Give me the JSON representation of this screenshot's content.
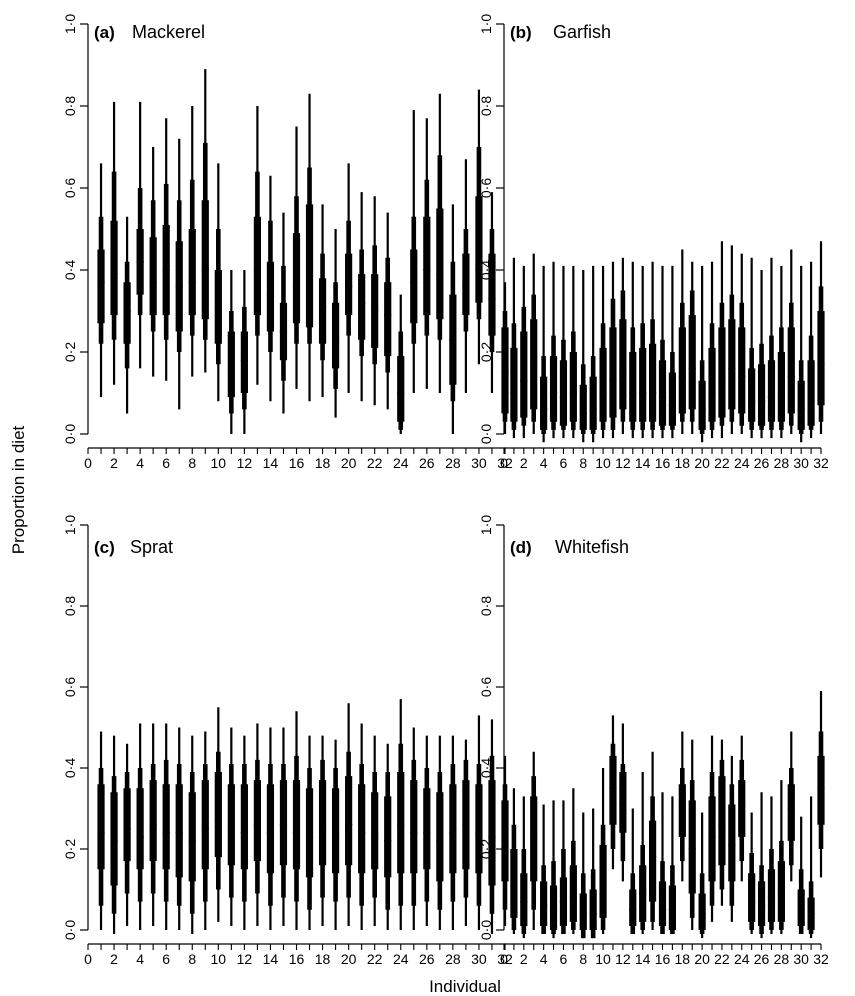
{
  "xlabel": "Individual",
  "ylabel": "Proportion in diet",
  "colors": {
    "boxes": "#000000",
    "axes": "#000000",
    "background": "#ffffff"
  },
  "chart_data": [
    {
      "type": "box",
      "label": "(a)",
      "title": "Mackerel",
      "ylim": [
        0,
        1
      ],
      "xlim": [
        0,
        32
      ],
      "yticks": [
        "0·0",
        "0·2",
        "0·4",
        "0·6",
        "0·8",
        "1·0"
      ],
      "xticks": [
        "0",
        "2",
        "4",
        "6",
        "8",
        "10",
        "12",
        "14",
        "16",
        "18",
        "20",
        "22",
        "24",
        "26",
        "28",
        "30",
        "32"
      ],
      "grid": false,
      "legend": "none",
      "individuals": [
        1,
        2,
        3,
        4,
        5,
        6,
        7,
        8,
        9,
        10,
        11,
        12,
        13,
        14,
        15,
        16,
        17,
        18,
        19,
        20,
        21,
        22,
        23,
        24,
        25,
        26,
        27,
        28,
        29,
        30,
        31,
        32
      ],
      "whisker_low": [
        0.09,
        0.12,
        0.05,
        0.16,
        0.14,
        0.13,
        0.06,
        0.14,
        0.15,
        0.08,
        0.0,
        0.0,
        0.12,
        0.08,
        0.05,
        0.11,
        0.08,
        0.09,
        0.04,
        0.1,
        0.08,
        0.07,
        0.06,
        0.0,
        0.1,
        0.11,
        0.1,
        0.0,
        0.1,
        0.17,
        0.1,
        0.0
      ],
      "q1": [
        0.22,
        0.23,
        0.16,
        0.29,
        0.25,
        0.23,
        0.2,
        0.24,
        0.23,
        0.17,
        0.05,
        0.06,
        0.24,
        0.2,
        0.13,
        0.22,
        0.22,
        0.18,
        0.11,
        0.24,
        0.19,
        0.17,
        0.15,
        0.01,
        0.22,
        0.24,
        0.23,
        0.08,
        0.25,
        0.28,
        0.2,
        0.03
      ],
      "q1_inner": [
        0.27,
        0.29,
        0.22,
        0.34,
        0.29,
        0.29,
        0.25,
        0.29,
        0.28,
        0.22,
        0.09,
        0.1,
        0.29,
        0.25,
        0.18,
        0.27,
        0.26,
        0.22,
        0.16,
        0.29,
        0.23,
        0.21,
        0.19,
        0.03,
        0.27,
        0.29,
        0.28,
        0.12,
        0.29,
        0.32,
        0.24,
        0.05
      ],
      "median": [
        0.37,
        0.39,
        0.3,
        0.42,
        0.37,
        0.4,
        0.36,
        0.37,
        0.4,
        0.31,
        0.15,
        0.18,
        0.4,
        0.34,
        0.25,
        0.36,
        0.4,
        0.31,
        0.23,
        0.36,
        0.32,
        0.3,
        0.29,
        0.1,
        0.37,
        0.4,
        0.39,
        0.23,
        0.36,
        0.4,
        0.33,
        0.15
      ],
      "q3_inner": [
        0.45,
        0.52,
        0.37,
        0.5,
        0.48,
        0.51,
        0.47,
        0.5,
        0.57,
        0.4,
        0.25,
        0.25,
        0.53,
        0.42,
        0.32,
        0.49,
        0.56,
        0.38,
        0.32,
        0.44,
        0.39,
        0.39,
        0.37,
        0.19,
        0.45,
        0.53,
        0.55,
        0.34,
        0.44,
        0.58,
        0.44,
        0.26
      ],
      "q3": [
        0.53,
        0.64,
        0.42,
        0.6,
        0.57,
        0.61,
        0.57,
        0.62,
        0.71,
        0.5,
        0.3,
        0.31,
        0.64,
        0.52,
        0.41,
        0.58,
        0.65,
        0.44,
        0.37,
        0.52,
        0.45,
        0.46,
        0.43,
        0.25,
        0.53,
        0.62,
        0.68,
        0.42,
        0.5,
        0.7,
        0.5,
        0.3
      ],
      "whisker_high": [
        0.66,
        0.81,
        0.53,
        0.81,
        0.7,
        0.77,
        0.72,
        0.8,
        0.89,
        0.66,
        0.4,
        0.4,
        0.8,
        0.63,
        0.54,
        0.75,
        0.83,
        0.56,
        0.5,
        0.66,
        0.59,
        0.58,
        0.54,
        0.34,
        0.79,
        0.77,
        0.83,
        0.56,
        0.67,
        0.84,
        0.59,
        0.37
      ]
    },
    {
      "type": "box",
      "label": "(b)",
      "title": "Garfish",
      "ylim": [
        0,
        1
      ],
      "xlim": [
        0,
        32
      ],
      "yticks": [
        "0·0",
        "0·2",
        "0·4",
        "0·6",
        "0·8",
        "1·0"
      ],
      "xticks": [
        "0",
        "2",
        "4",
        "6",
        "8",
        "10",
        "12",
        "14",
        "16",
        "18",
        "20",
        "22",
        "24",
        "26",
        "28",
        "30",
        "32"
      ],
      "grid": false,
      "legend": "none",
      "individuals": [
        1,
        2,
        3,
        4,
        5,
        6,
        7,
        8,
        9,
        10,
        11,
        12,
        13,
        14,
        15,
        16,
        17,
        18,
        19,
        20,
        21,
        22,
        23,
        24,
        25,
        26,
        27,
        28,
        29,
        30,
        31,
        32
      ],
      "whisker_low": [
        -0.01,
        -0.01,
        0.0,
        -0.02,
        -0.01,
        -0.01,
        -0.01,
        -0.02,
        -0.02,
        -0.01,
        -0.01,
        0.0,
        -0.01,
        -0.01,
        -0.01,
        -0.01,
        -0.01,
        0.0,
        0.0,
        -0.02,
        -0.01,
        -0.01,
        0.0,
        0.0,
        -0.01,
        -0.01,
        -0.01,
        -0.01,
        0.0,
        -0.02,
        -0.01,
        0.0
      ],
      "q1": [
        0.01,
        0.02,
        0.03,
        0.0,
        0.01,
        0.01,
        0.01,
        0.0,
        0.0,
        0.01,
        0.01,
        0.03,
        0.01,
        0.01,
        0.01,
        0.01,
        0.01,
        0.03,
        0.03,
        0.0,
        0.01,
        0.02,
        0.03,
        0.02,
        0.01,
        0.01,
        0.01,
        0.01,
        0.02,
        0.0,
        0.01,
        0.03
      ],
      "q1_inner": [
        0.03,
        0.04,
        0.06,
        0.01,
        0.03,
        0.02,
        0.03,
        0.01,
        0.01,
        0.03,
        0.04,
        0.06,
        0.03,
        0.03,
        0.03,
        0.02,
        0.02,
        0.05,
        0.06,
        0.01,
        0.03,
        0.04,
        0.06,
        0.05,
        0.03,
        0.02,
        0.03,
        0.03,
        0.05,
        0.01,
        0.02,
        0.07
      ],
      "median": [
        0.1,
        0.13,
        0.17,
        0.06,
        0.1,
        0.09,
        0.1,
        0.05,
        0.06,
        0.1,
        0.13,
        0.15,
        0.1,
        0.1,
        0.1,
        0.09,
        0.07,
        0.14,
        0.16,
        0.06,
        0.1,
        0.13,
        0.16,
        0.14,
        0.08,
        0.08,
        0.09,
        0.09,
        0.14,
        0.06,
        0.08,
        0.17
      ],
      "q3_inner": [
        0.21,
        0.25,
        0.28,
        0.14,
        0.19,
        0.18,
        0.2,
        0.12,
        0.14,
        0.21,
        0.26,
        0.28,
        0.2,
        0.21,
        0.22,
        0.18,
        0.15,
        0.26,
        0.29,
        0.13,
        0.21,
        0.26,
        0.28,
        0.26,
        0.16,
        0.17,
        0.18,
        0.2,
        0.26,
        0.13,
        0.18,
        0.3
      ],
      "q3": [
        0.27,
        0.31,
        0.34,
        0.19,
        0.24,
        0.23,
        0.25,
        0.17,
        0.19,
        0.27,
        0.33,
        0.35,
        0.26,
        0.27,
        0.28,
        0.23,
        0.2,
        0.32,
        0.35,
        0.18,
        0.27,
        0.32,
        0.34,
        0.32,
        0.21,
        0.22,
        0.24,
        0.26,
        0.32,
        0.18,
        0.24,
        0.36
      ],
      "whisker_high": [
        0.43,
        0.41,
        0.44,
        0.41,
        0.42,
        0.41,
        0.41,
        0.4,
        0.41,
        0.41,
        0.42,
        0.43,
        0.42,
        0.41,
        0.42,
        0.41,
        0.41,
        0.45,
        0.42,
        0.41,
        0.42,
        0.47,
        0.46,
        0.44,
        0.43,
        0.4,
        0.43,
        0.41,
        0.45,
        0.41,
        0.42,
        0.47
      ]
    },
    {
      "type": "box",
      "label": "(c)",
      "title": "Sprat",
      "ylim": [
        0,
        1
      ],
      "xlim": [
        0,
        32
      ],
      "yticks": [
        "0·0",
        "0·2",
        "0·4",
        "0·6",
        "0·8",
        "1·0"
      ],
      "xticks": [
        "0",
        "2",
        "4",
        "6",
        "8",
        "10",
        "12",
        "14",
        "16",
        "18",
        "20",
        "22",
        "24",
        "26",
        "28",
        "30",
        "32"
      ],
      "grid": false,
      "legend": "none",
      "individuals": [
        1,
        2,
        3,
        4,
        5,
        6,
        7,
        8,
        9,
        10,
        11,
        12,
        13,
        14,
        15,
        16,
        17,
        18,
        19,
        20,
        21,
        22,
        23,
        24,
        25,
        26,
        27,
        28,
        29,
        30,
        31,
        32
      ],
      "whisker_low": [
        0.0,
        -0.01,
        0.01,
        0.0,
        0.01,
        0.0,
        0.0,
        -0.01,
        0.0,
        0.02,
        0.01,
        0.0,
        0.01,
        0.0,
        0.01,
        0.0,
        0.0,
        0.01,
        0.0,
        0.01,
        0.0,
        0.01,
        0.0,
        0.0,
        0.0,
        0.01,
        0.0,
        0.0,
        0.01,
        0.0,
        -0.01,
        0.01
      ],
      "q1": [
        0.06,
        0.04,
        0.09,
        0.07,
        0.09,
        0.07,
        0.06,
        0.04,
        0.07,
        0.1,
        0.08,
        0.07,
        0.09,
        0.06,
        0.08,
        0.07,
        0.05,
        0.08,
        0.07,
        0.08,
        0.06,
        0.08,
        0.05,
        0.06,
        0.06,
        0.07,
        0.05,
        0.07,
        0.08,
        0.06,
        0.04,
        0.05
      ],
      "q1_inner": [
        0.15,
        0.11,
        0.17,
        0.15,
        0.17,
        0.15,
        0.13,
        0.12,
        0.15,
        0.18,
        0.16,
        0.15,
        0.17,
        0.14,
        0.16,
        0.15,
        0.13,
        0.16,
        0.14,
        0.16,
        0.14,
        0.15,
        0.13,
        0.14,
        0.14,
        0.15,
        0.12,
        0.14,
        0.15,
        0.14,
        0.11,
        0.12
      ],
      "median": [
        0.24,
        0.22,
        0.25,
        0.23,
        0.26,
        0.24,
        0.24,
        0.22,
        0.25,
        0.27,
        0.25,
        0.24,
        0.26,
        0.24,
        0.26,
        0.24,
        0.23,
        0.25,
        0.23,
        0.26,
        0.24,
        0.23,
        0.22,
        0.26,
        0.24,
        0.24,
        0.22,
        0.24,
        0.26,
        0.24,
        0.23,
        0.22
      ],
      "q3_inner": [
        0.36,
        0.34,
        0.35,
        0.35,
        0.37,
        0.36,
        0.36,
        0.34,
        0.37,
        0.39,
        0.36,
        0.36,
        0.37,
        0.36,
        0.37,
        0.37,
        0.35,
        0.37,
        0.35,
        0.38,
        0.36,
        0.34,
        0.33,
        0.39,
        0.37,
        0.35,
        0.34,
        0.36,
        0.37,
        0.36,
        0.37,
        0.32
      ],
      "q3": [
        0.4,
        0.38,
        0.39,
        0.4,
        0.41,
        0.42,
        0.41,
        0.39,
        0.41,
        0.44,
        0.41,
        0.41,
        0.42,
        0.41,
        0.41,
        0.43,
        0.4,
        0.42,
        0.4,
        0.44,
        0.41,
        0.39,
        0.39,
        0.46,
        0.42,
        0.4,
        0.39,
        0.41,
        0.42,
        0.41,
        0.43,
        0.36
      ],
      "whisker_high": [
        0.49,
        0.48,
        0.46,
        0.51,
        0.51,
        0.51,
        0.5,
        0.48,
        0.49,
        0.55,
        0.5,
        0.48,
        0.51,
        0.5,
        0.5,
        0.54,
        0.48,
        0.48,
        0.47,
        0.56,
        0.51,
        0.48,
        0.46,
        0.57,
        0.5,
        0.48,
        0.48,
        0.48,
        0.47,
        0.53,
        0.52,
        0.43
      ]
    },
    {
      "type": "box",
      "label": "(d)",
      "title": "Whitefish",
      "ylim": [
        0,
        1
      ],
      "xlim": [
        0,
        32
      ],
      "yticks": [
        "0·0",
        "0·2",
        "0·4",
        "0·6",
        "0·8",
        "1·0"
      ],
      "xticks": [
        "0",
        "2",
        "4",
        "6",
        "8",
        "10",
        "12",
        "14",
        "16",
        "18",
        "20",
        "22",
        "24",
        "26",
        "28",
        "30",
        "32"
      ],
      "grid": false,
      "legend": "none",
      "individuals": [
        1,
        2,
        3,
        4,
        5,
        6,
        7,
        8,
        9,
        10,
        11,
        12,
        13,
        14,
        15,
        16,
        17,
        18,
        19,
        20,
        21,
        22,
        23,
        24,
        25,
        26,
        27,
        28,
        29,
        30,
        31,
        32
      ],
      "whisker_low": [
        -0.01,
        -0.02,
        0.0,
        -0.01,
        -0.02,
        -0.01,
        -0.01,
        -0.02,
        -0.02,
        -0.01,
        0.15,
        0.12,
        -0.01,
        -0.01,
        0.0,
        -0.01,
        -0.01,
        0.12,
        0.0,
        -0.02,
        0.02,
        0.06,
        0.02,
        0.12,
        -0.01,
        -0.02,
        -0.01,
        -0.01,
        0.12,
        -0.01,
        -0.02,
        0.13
      ],
      "q1": [
        0.0,
        -0.01,
        0.05,
        -0.01,
        -0.01,
        -0.01,
        0.0,
        -0.02,
        -0.02,
        0.0,
        0.2,
        0.17,
        -0.01,
        0.0,
        0.02,
        -0.01,
        -0.01,
        0.17,
        0.03,
        -0.01,
        0.06,
        0.1,
        0.06,
        0.17,
        0.0,
        -0.01,
        0.0,
        0.0,
        0.16,
        -0.01,
        -0.01,
        0.2
      ],
      "q1_inner": [
        0.03,
        0.01,
        0.12,
        0.01,
        0.0,
        0.01,
        0.02,
        0.0,
        0.0,
        0.03,
        0.26,
        0.24,
        0.01,
        0.02,
        0.07,
        0.01,
        0.0,
        0.23,
        0.09,
        0.0,
        0.12,
        0.16,
        0.12,
        0.23,
        0.02,
        0.01,
        0.02,
        0.02,
        0.22,
        0.01,
        0.0,
        0.26
      ],
      "median": [
        0.11,
        0.07,
        0.23,
        0.06,
        0.05,
        0.07,
        0.08,
        0.04,
        0.04,
        0.12,
        0.35,
        0.31,
        0.05,
        0.09,
        0.18,
        0.05,
        0.05,
        0.31,
        0.2,
        0.04,
        0.23,
        0.26,
        0.21,
        0.31,
        0.07,
        0.06,
        0.08,
        0.09,
        0.3,
        0.05,
        0.04,
        0.35
      ],
      "q3_inner": [
        0.2,
        0.14,
        0.33,
        0.12,
        0.11,
        0.13,
        0.16,
        0.09,
        0.1,
        0.21,
        0.43,
        0.39,
        0.1,
        0.16,
        0.27,
        0.12,
        0.11,
        0.36,
        0.32,
        0.09,
        0.33,
        0.38,
        0.31,
        0.37,
        0.14,
        0.12,
        0.15,
        0.17,
        0.36,
        0.1,
        0.08,
        0.43
      ],
      "q3": [
        0.26,
        0.2,
        0.38,
        0.16,
        0.17,
        0.2,
        0.22,
        0.14,
        0.15,
        0.26,
        0.46,
        0.41,
        0.14,
        0.21,
        0.33,
        0.17,
        0.16,
        0.4,
        0.37,
        0.14,
        0.39,
        0.42,
        0.36,
        0.42,
        0.19,
        0.16,
        0.2,
        0.22,
        0.4,
        0.15,
        0.12,
        0.49
      ],
      "whisker_high": [
        0.35,
        0.33,
        0.44,
        0.31,
        0.32,
        0.32,
        0.35,
        0.29,
        0.3,
        0.4,
        0.53,
        0.51,
        0.3,
        0.39,
        0.44,
        0.34,
        0.33,
        0.49,
        0.47,
        0.29,
        0.48,
        0.47,
        0.43,
        0.48,
        0.29,
        0.34,
        0.33,
        0.37,
        0.49,
        0.28,
        0.33,
        0.59
      ]
    }
  ]
}
